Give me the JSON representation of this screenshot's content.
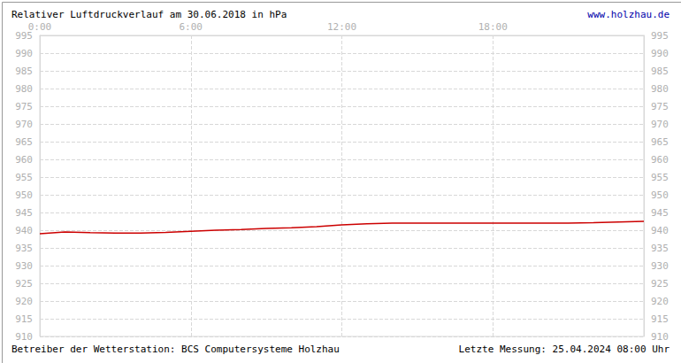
{
  "chart_data": {
    "type": "line",
    "title": "Relativer Luftdruckverlauf am 30.06.2018 in hPa",
    "source_link": "www.holzhau.de",
    "footer_left": "Betreiber der Wetterstation: BCS Computersysteme Holzhau",
    "footer_right": "Letzte Messung: 25.04.2024 08:00 Uhr",
    "x": [
      0,
      1,
      2,
      3,
      4,
      5,
      6,
      7,
      8,
      9,
      10,
      11,
      12,
      13,
      14,
      15,
      16,
      17,
      18,
      19,
      20,
      21,
      22,
      23,
      24
    ],
    "values": [
      939.0,
      939.5,
      939.3,
      939.2,
      939.2,
      939.4,
      939.7,
      940.0,
      940.2,
      940.5,
      940.7,
      941.0,
      941.5,
      941.8,
      942.0,
      942.0,
      942.0,
      942.0,
      942.0,
      942.0,
      942.0,
      942.0,
      942.1,
      942.3,
      942.5
    ],
    "color": "#cc0000",
    "xlim": [
      0,
      24
    ],
    "xticks": [
      {
        "value": 0,
        "label": "0:00"
      },
      {
        "value": 6,
        "label": "6:00"
      },
      {
        "value": 12,
        "label": "12:00"
      },
      {
        "value": 18,
        "label": "18:00"
      }
    ],
    "ylim": [
      910,
      995
    ],
    "yticks": [
      910,
      915,
      920,
      925,
      930,
      935,
      940,
      945,
      950,
      955,
      960,
      965,
      970,
      975,
      980,
      985,
      990,
      995
    ],
    "grid": true
  }
}
